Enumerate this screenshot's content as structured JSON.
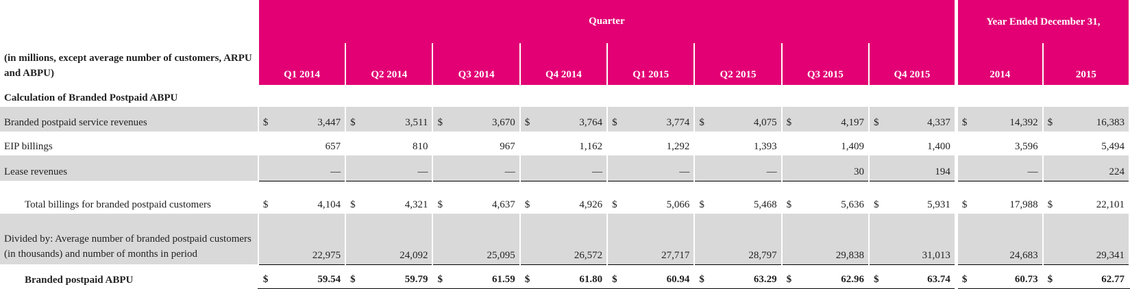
{
  "header": {
    "quarter": "Quarter",
    "year": "Year Ended December 31,",
    "note": "(in millions, except average number of customers, ARPU and ABPU)",
    "columns": [
      "Q1 2014",
      "Q2 2014",
      "Q3 2014",
      "Q4 2014",
      "Q1 2015",
      "Q2 2015",
      "Q3 2015",
      "Q4 2015",
      "2014",
      "2015"
    ]
  },
  "section": "Calculation of Branded Postpaid ABPU",
  "rows": [
    {
      "label": "Branded postpaid service revenues",
      "currency": "$",
      "values": [
        "3,447",
        "3,511",
        "3,670",
        "3,764",
        "3,774",
        "4,075",
        "4,197",
        "4,337",
        "14,392",
        "16,383"
      ]
    },
    {
      "label": "EIP billings",
      "values": [
        "657",
        "810",
        "967",
        "1,162",
        "1,292",
        "1,393",
        "1,409",
        "1,400",
        "3,596",
        "5,494"
      ]
    },
    {
      "label": "Lease revenues",
      "values": [
        "—",
        "—",
        "—",
        "—",
        "—",
        "—",
        "30",
        "194",
        "—",
        "224"
      ]
    },
    {
      "label": "Total billings for branded postpaid customers",
      "currency": "$",
      "values": [
        "4,104",
        "4,321",
        "4,637",
        "4,926",
        "5,066",
        "5,468",
        "5,636",
        "5,931",
        "17,988",
        "22,101"
      ]
    },
    {
      "label": "Divided by: Average number of branded postpaid customers (in thousands) and number of months in period",
      "values": [
        "22,975",
        "24,092",
        "25,095",
        "26,572",
        "27,717",
        "28,797",
        "29,838",
        "31,013",
        "24,683",
        "29,341"
      ]
    },
    {
      "label": "Branded postpaid ABPU",
      "currency": "$",
      "values": [
        "59.54",
        "59.79",
        "61.59",
        "61.80",
        "60.94",
        "63.29",
        "62.96",
        "63.74",
        "60.73",
        "62.77"
      ]
    }
  ]
}
